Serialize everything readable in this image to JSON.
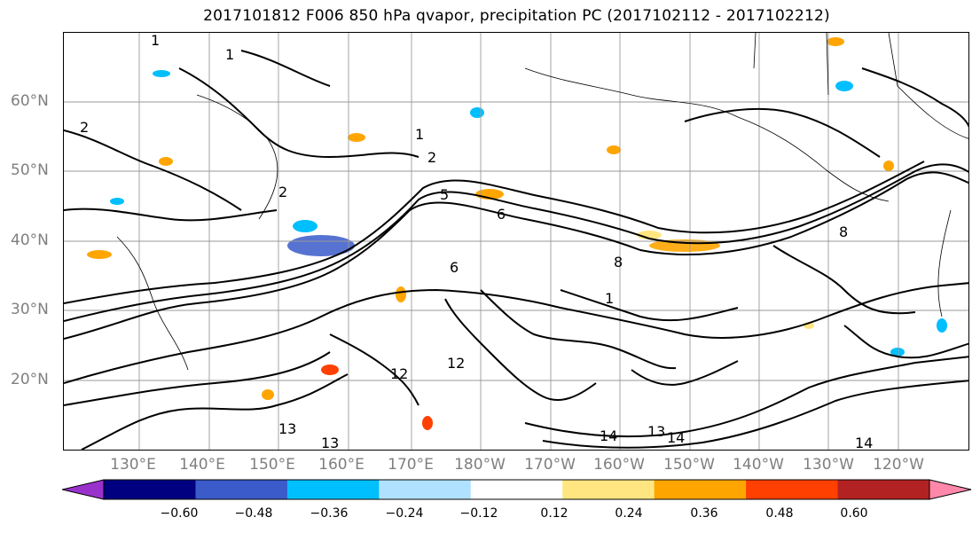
{
  "title": "2017101812 F006 850 hPa qvapor, precipitation PC (2017102112 - 2017102212)",
  "lat_labels": [
    "60°N",
    "50°N",
    "40°N",
    "30°N",
    "20°N"
  ],
  "lon_labels": [
    "130°E",
    "140°E",
    "150°E",
    "160°E",
    "170°E",
    "180°W",
    "170°W",
    "160°W",
    "150°W",
    "140°W",
    "130°W",
    "120°W"
  ],
  "colorbar": {
    "ticks": [
      "−0.60",
      "−0.48",
      "−0.36",
      "−0.24",
      "−0.12",
      "0.12",
      "0.24",
      "0.36",
      "0.48",
      "0.60"
    ],
    "colors": [
      "#9932CC",
      "#000080",
      "#3A5BC9",
      "#00BFFF",
      "#B0E2FF",
      "#FFFFFF",
      "#FFE680",
      "#FFA500",
      "#FF4000",
      "#B22222",
      "#FF88AA"
    ]
  },
  "contour_labels": [
    {
      "text": "1"
    },
    {
      "text": "1"
    },
    {
      "text": "2"
    },
    {
      "text": "2"
    },
    {
      "text": "1"
    },
    {
      "text": "2"
    },
    {
      "text": "5"
    },
    {
      "text": "6"
    },
    {
      "text": "8"
    },
    {
      "text": "6"
    },
    {
      "text": "8"
    },
    {
      "text": "12"
    },
    {
      "text": "12"
    },
    {
      "text": "13"
    },
    {
      "text": "13"
    },
    {
      "text": "14"
    },
    {
      "text": "13"
    },
    {
      "text": "14"
    },
    {
      "text": "14"
    },
    {
      "text": "1"
    }
  ]
}
